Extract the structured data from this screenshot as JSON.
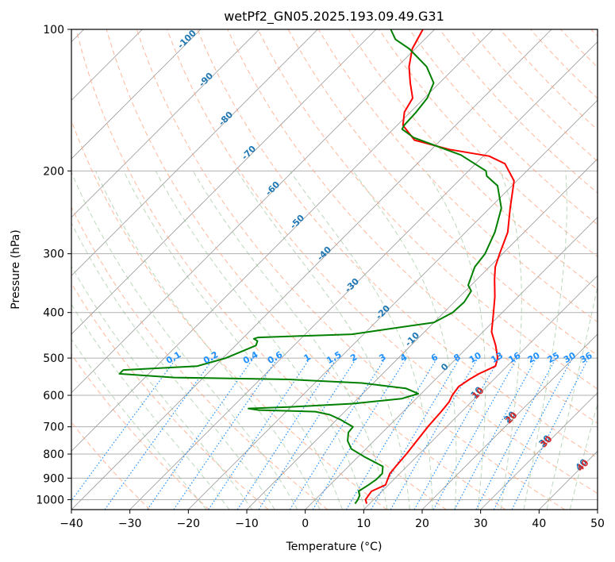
{
  "chart_data": {
    "type": "line",
    "title": "wetPf2_GN05.2025.193.09.49.G31",
    "xlabel": "Temperature (°C)",
    "ylabel": "Pressure (hPa)",
    "xlim": [
      -40,
      50
    ],
    "ylim": [
      1050,
      100
    ],
    "y_scale": "log",
    "skew": true,
    "x_ticks": [
      -40,
      -30,
      -20,
      -10,
      0,
      10,
      20,
      30,
      40,
      50
    ],
    "y_ticks": [
      100,
      200,
      300,
      400,
      500,
      600,
      700,
      800,
      900,
      1000
    ],
    "grid": true,
    "colors": {
      "temperature": "#ff0000",
      "dewpoint": "#008000",
      "dry_adiabat": "#ffa07a",
      "moist_adiabat": "#8fbc8f",
      "mixing_ratio": "#1e90ff",
      "isotherm": "#999999"
    },
    "series": [
      {
        "points": [
          [
            1020,
            9.5
          ],
          [
            1000,
            8.6
          ],
          [
            980,
            8.4
          ],
          [
            960,
            8.2
          ],
          [
            930,
            9.5
          ],
          [
            905,
            8.9
          ],
          [
            880,
            8.3
          ],
          [
            850,
            8.1
          ],
          [
            800,
            7.8
          ],
          [
            700,
            6.8
          ],
          [
            650,
            6.5
          ],
          [
            620,
            6.2
          ],
          [
            600,
            5.6
          ],
          [
            575,
            5.2
          ],
          [
            555,
            5.8
          ],
          [
            540,
            6.5
          ],
          [
            520,
            8.0
          ],
          [
            500,
            7.0
          ],
          [
            470,
            4.5
          ],
          [
            440,
            1.5
          ],
          [
            400,
            -1.5
          ],
          [
            370,
            -4.0
          ],
          [
            340,
            -7.0
          ],
          [
            320,
            -9.0
          ],
          [
            300,
            -10.5
          ],
          [
            270,
            -12.8
          ],
          [
            240,
            -16.5
          ],
          [
            210,
            -20.5
          ],
          [
            193,
            -25.0
          ],
          [
            186,
            -29.0
          ],
          [
            180,
            -37.0
          ],
          [
            172,
            -44.5
          ],
          [
            160,
            -49.0
          ],
          [
            150,
            -51.0
          ],
          [
            140,
            -52.0
          ],
          [
            130,
            -55.0
          ],
          [
            120,
            -58.0
          ],
          [
            110,
            -60.5
          ],
          [
            100,
            -62.0
          ]
        ]
      },
      {
        "points": [
          [
            1020,
            7.5
          ],
          [
            1000,
            7.3
          ],
          [
            980,
            6.9
          ],
          [
            960,
            6.0
          ],
          [
            930,
            6.6
          ],
          [
            905,
            7.0
          ],
          [
            880,
            7.0
          ],
          [
            850,
            5.9
          ],
          [
            810,
            1.0
          ],
          [
            780,
            -2.5
          ],
          [
            750,
            -4.5
          ],
          [
            720,
            -5.8
          ],
          [
            700,
            -6.0
          ],
          [
            675,
            -9.5
          ],
          [
            660,
            -12.0
          ],
          [
            650,
            -15.0
          ],
          [
            645,
            -25.0
          ],
          [
            640,
            -27.0
          ],
          [
            635,
            -20.0
          ],
          [
            625,
            -10.0
          ],
          [
            610,
            -2.5
          ],
          [
            595,
            -0.5
          ],
          [
            580,
            -3.5
          ],
          [
            565,
            -12.0
          ],
          [
            555,
            -25.0
          ],
          [
            550,
            -45.0
          ],
          [
            540,
            -55.0
          ],
          [
            530,
            -55.0
          ],
          [
            520,
            -43.0
          ],
          [
            500,
            -39.5
          ],
          [
            480,
            -37.5
          ],
          [
            470,
            -36.5
          ],
          [
            460,
            -37.0
          ],
          [
            455,
            -38.0
          ],
          [
            452,
            -37.5
          ],
          [
            445,
            -22.0
          ],
          [
            420,
            -10.0
          ],
          [
            400,
            -8.5
          ],
          [
            380,
            -8.3
          ],
          [
            360,
            -9.0
          ],
          [
            350,
            -10.5
          ],
          [
            320,
            -12.5
          ],
          [
            300,
            -13.0
          ],
          [
            270,
            -15.0
          ],
          [
            240,
            -18.0
          ],
          [
            215,
            -22.5
          ],
          [
            205,
            -26.0
          ],
          [
            200,
            -27.0
          ],
          [
            185,
            -34.0
          ],
          [
            170,
            -45.0
          ],
          [
            163,
            -48.5
          ],
          [
            160,
            -48.8
          ],
          [
            150,
            -49.0
          ],
          [
            140,
            -49.5
          ],
          [
            130,
            -51.0
          ],
          [
            120,
            -55.0
          ],
          [
            110,
            -61.0
          ],
          [
            105,
            -65.0
          ],
          [
            100,
            -67.5
          ]
        ]
      }
    ],
    "mixing_ratio_labels": [
      "0.1",
      "0.2",
      "0.4",
      "0.6",
      "1",
      "1.5",
      "2",
      "3",
      "4",
      "6",
      "8",
      "10",
      "13",
      "16",
      "20",
      "25",
      "30",
      "36"
    ],
    "dry_adiabat_labels": [
      "-100",
      "-90",
      "-80",
      "-70",
      "-60",
      "-50",
      "-40",
      "-30",
      "-20",
      "-10",
      "0",
      "10",
      "20",
      "30",
      "40"
    ],
    "moist_adiabat_labels": [
      "10",
      "20",
      "30",
      "40"
    ]
  }
}
